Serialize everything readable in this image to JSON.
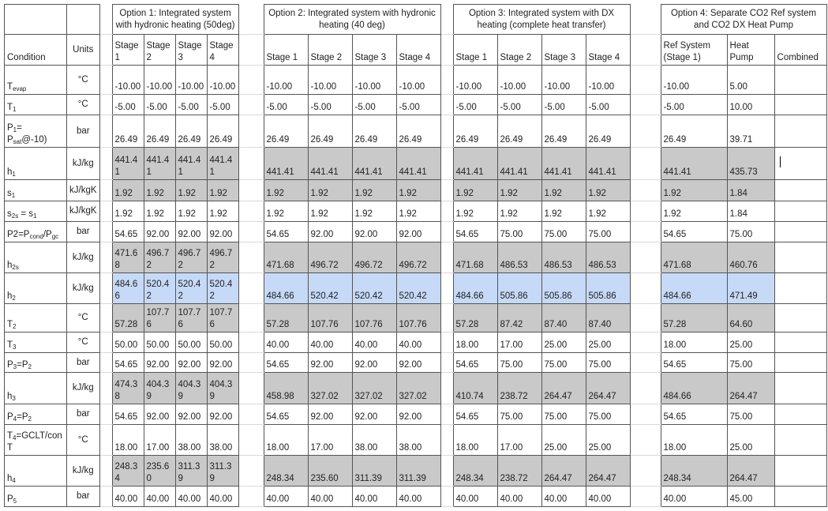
{
  "colors": {
    "gray": "#c9c9c9",
    "blue": "#c6d9f7"
  },
  "headers": {
    "condition": "Condition",
    "units": "Units",
    "options": [
      {
        "title": "Option 1: Integrated system with hydronic heating (50deg)",
        "cols": [
          "Stage 1",
          "Stage 2",
          "Stage 3",
          "Stage 4"
        ]
      },
      {
        "title": "Option 2: Integrated system with hydronic heating (40 deg)",
        "cols": [
          "Stage 1",
          "Stage 2",
          "Stage 3",
          "Stage 4"
        ]
      },
      {
        "title": "Option 3: Integrated system with DX heating (complete heat transfer)",
        "cols": [
          "Stage 1",
          "Stage 2",
          "Stage 3",
          "Stage 4"
        ]
      },
      {
        "title": "Option 4: Separate CO2 Ref system and CO2 DX Heat Pump",
        "cols": [
          "Ref System (Stage 1)",
          "Heat Pump",
          "Combined"
        ]
      }
    ]
  },
  "rows": [
    {
      "cond": [
        [
          "T",
          ""
        ],
        [
          "evap",
          "sub"
        ]
      ],
      "unit": "°C",
      "fill": "",
      "o1": [
        "-10.00",
        "-10.00",
        "-10.00",
        "-10.00"
      ],
      "o2": [
        "-10.00",
        "-10.00",
        "-10.00",
        "-10.00"
      ],
      "o3": [
        "-10.00",
        "-10.00",
        "-10.00",
        "-10.00"
      ],
      "o4": [
        "-10.00",
        "5.00",
        ""
      ]
    },
    {
      "cond": [
        [
          "T",
          ""
        ],
        [
          "1",
          "sub"
        ]
      ],
      "unit": "°C",
      "fill": "",
      "o1": [
        "-5.00",
        "-5.00",
        "-5.00",
        "-5.00"
      ],
      "o2": [
        "-5.00",
        "-5.00",
        "-5.00",
        "-5.00"
      ],
      "o3": [
        "-5.00",
        "-5.00",
        "-5.00",
        "-5.00"
      ],
      "o4": [
        "-5.00",
        "10.00",
        ""
      ]
    },
    {
      "cond": [
        [
          "P",
          ""
        ],
        [
          "1",
          "sub"
        ],
        [
          "= P",
          ""
        ],
        [
          "sat",
          "sub"
        ],
        [
          "@-10)",
          ""
        ]
      ],
      "unit": "bar",
      "fill": "",
      "o1": [
        "26.49",
        "26.49",
        "26.49",
        "26.49"
      ],
      "o2": [
        "26.49",
        "26.49",
        "26.49",
        "26.49"
      ],
      "o3": [
        "26.49",
        "26.49",
        "26.49",
        "26.49"
      ],
      "o4": [
        "26.49",
        "39.71",
        ""
      ]
    },
    {
      "cond": [
        [
          "h",
          ""
        ],
        [
          "1",
          "sub"
        ]
      ],
      "unit": "kJ/kg",
      "fill": "gray",
      "o1": [
        "441.41",
        "441.41",
        "441.41",
        "441.41"
      ],
      "o2": [
        "441.41",
        "441.41",
        "441.41",
        "441.41"
      ],
      "o3": [
        "441.41",
        "441.41",
        "441.41",
        "441.41"
      ],
      "o4": [
        "441.41",
        "435.73",
        ""
      ]
    },
    {
      "cond": [
        [
          "s",
          ""
        ],
        [
          "1",
          "sub"
        ]
      ],
      "unit": "kJ/kgK",
      "fill": "gray",
      "o1": [
        "1.92",
        "1.92",
        "1.92",
        "1.92"
      ],
      "o2": [
        "1.92",
        "1.92",
        "1.92",
        "1.92"
      ],
      "o3": [
        "1.92",
        "1.92",
        "1.92",
        "1.92"
      ],
      "o4": [
        "1.92",
        "1.84",
        ""
      ]
    },
    {
      "cond": [
        [
          "s",
          ""
        ],
        [
          "2s",
          "sub"
        ],
        [
          " = s",
          ""
        ],
        [
          "1",
          "sub"
        ]
      ],
      "unit": "kJ/kgK",
      "fill": "",
      "o1": [
        "1.92",
        "1.92",
        "1.92",
        "1.92"
      ],
      "o2": [
        "1.92",
        "1.92",
        "1.92",
        "1.92"
      ],
      "o3": [
        "1.92",
        "1.92",
        "1.92",
        "1.92"
      ],
      "o4": [
        "1.92",
        "1.84",
        ""
      ]
    },
    {
      "cond": [
        [
          "P2=P",
          ""
        ],
        [
          "cond",
          "sub"
        ],
        [
          "/P",
          ""
        ],
        [
          "gc",
          "sub"
        ]
      ],
      "unit": "bar",
      "fill": "",
      "o1": [
        "54.65",
        "92.00",
        "92.00",
        "92.00"
      ],
      "o2": [
        "54.65",
        "92.00",
        "92.00",
        "92.00"
      ],
      "o3": [
        "54.65",
        "75.00",
        "75.00",
        "75.00"
      ],
      "o4": [
        "54.65",
        "75.00",
        ""
      ]
    },
    {
      "cond": [
        [
          "h",
          ""
        ],
        [
          "2s",
          "sub"
        ]
      ],
      "unit": "kJ/kg",
      "fill": "gray",
      "o1": [
        "471.68",
        "496.72",
        "496.72",
        "496.72"
      ],
      "o2": [
        "471.68",
        "496.72",
        "496.72",
        "496.72"
      ],
      "o3": [
        "471.68",
        "486.53",
        "486.53",
        "486.53"
      ],
      "o4": [
        "471.68",
        "460.76",
        ""
      ]
    },
    {
      "cond": [
        [
          "h",
          ""
        ],
        [
          "2",
          "sub"
        ]
      ],
      "unit": "kJ/kg",
      "fill": "blue",
      "o1": [
        "484.66",
        "520.42",
        "520.42",
        "520.42"
      ],
      "o2": [
        "484.66",
        "520.42",
        "520.42",
        "520.42"
      ],
      "o3": [
        "484.66",
        "505.86",
        "505.86",
        "505.86"
      ],
      "o4": [
        "484.66",
        "471.49",
        ""
      ]
    },
    {
      "cond": [
        [
          "T",
          ""
        ],
        [
          "2",
          "sub"
        ]
      ],
      "unit": "°C",
      "fill": "gray",
      "o1": [
        "57.28",
        "107.76",
        "107.76",
        "107.76"
      ],
      "o2": [
        "57.28",
        "107.76",
        "107.76",
        "107.76"
      ],
      "o3": [
        "57.28",
        "87.42",
        "87.40",
        "87.40"
      ],
      "o4": [
        "57.28",
        "64.60",
        ""
      ]
    },
    {
      "cond": [
        [
          "T",
          ""
        ],
        [
          "3",
          "sub"
        ]
      ],
      "unit": "°C",
      "fill": "",
      "o1": [
        "50.00",
        "50.00",
        "50.00",
        "50.00"
      ],
      "o2": [
        "40.00",
        "40.00",
        "40.00",
        "40.00"
      ],
      "o3": [
        "18.00",
        "17.00",
        "25.00",
        "25.00"
      ],
      "o4": [
        "18.00",
        "25.00",
        ""
      ]
    },
    {
      "cond": [
        [
          "P",
          ""
        ],
        [
          "3",
          "sub"
        ],
        [
          "=P",
          ""
        ],
        [
          "2",
          "sub"
        ]
      ],
      "unit": "bar",
      "fill": "",
      "o1": [
        "54.65",
        "92.00",
        "92.00",
        "92.00"
      ],
      "o2": [
        "54.65",
        "92.00",
        "92.00",
        "92.00"
      ],
      "o3": [
        "54.65",
        "75.00",
        "75.00",
        "75.00"
      ],
      "o4": [
        "54.65",
        "75.00",
        ""
      ]
    },
    {
      "cond": [
        [
          "h",
          ""
        ],
        [
          "3",
          "sub"
        ]
      ],
      "unit": "kJ/kg",
      "fill": "gray",
      "o1": [
        "474.38",
        "404.39",
        "404.39",
        "404.39"
      ],
      "o2": [
        "458.98",
        "327.02",
        "327.02",
        "327.02"
      ],
      "o3": [
        "410.74",
        "238.72",
        "264.47",
        "264.47"
      ],
      "o4": [
        "484.66",
        "264.47",
        ""
      ]
    },
    {
      "cond": [
        [
          "P",
          ""
        ],
        [
          "4",
          "sub"
        ],
        [
          "=P",
          ""
        ],
        [
          "2",
          "sub"
        ]
      ],
      "unit": "bar",
      "fill": "",
      "o1": [
        "54.65",
        "92.00",
        "92.00",
        "92.00"
      ],
      "o2": [
        "54.65",
        "92.00",
        "92.00",
        "92.00"
      ],
      "o3": [
        "54.65",
        "75.00",
        "75.00",
        "75.00"
      ],
      "o4": [
        "54.65",
        "75.00",
        ""
      ]
    },
    {
      "cond": [
        [
          "T",
          ""
        ],
        [
          "4",
          "sub"
        ],
        [
          "=GCLT/con T",
          ""
        ]
      ],
      "unit": "°C",
      "fill": "",
      "o1": [
        "18.00",
        "17.00",
        "38.00",
        "38.00"
      ],
      "o2": [
        "18.00",
        "17.00",
        "38.00",
        "38.00"
      ],
      "o3": [
        "18.00",
        "17.00",
        "25.00",
        "25.00"
      ],
      "o4": [
        "18.00",
        "25.00",
        ""
      ]
    },
    {
      "cond": [
        [
          "h",
          ""
        ],
        [
          "4",
          "sub"
        ]
      ],
      "unit": "kJ/kg",
      "fill": "gray",
      "o1": [
        "248.34",
        "235.60",
        "311.39",
        "311.39"
      ],
      "o2": [
        "248.34",
        "235.60",
        "311.39",
        "311.39"
      ],
      "o3": [
        "248.34",
        "238.72",
        "264.47",
        "264.47"
      ],
      "o4": [
        "248.34",
        "264.47",
        ""
      ]
    },
    {
      "cond": [
        [
          "P",
          ""
        ],
        [
          "5",
          "sub"
        ]
      ],
      "unit": "bar",
      "fill": "",
      "o1": [
        "40.00",
        "40.00",
        "40.00",
        "40.00"
      ],
      "o2": [
        "40.00",
        "40.00",
        "40.00",
        "40.00"
      ],
      "o3": [
        "40.00",
        "40.00",
        "40.00",
        "40.00"
      ],
      "o4": [
        "40.00",
        "45.00",
        ""
      ]
    }
  ]
}
